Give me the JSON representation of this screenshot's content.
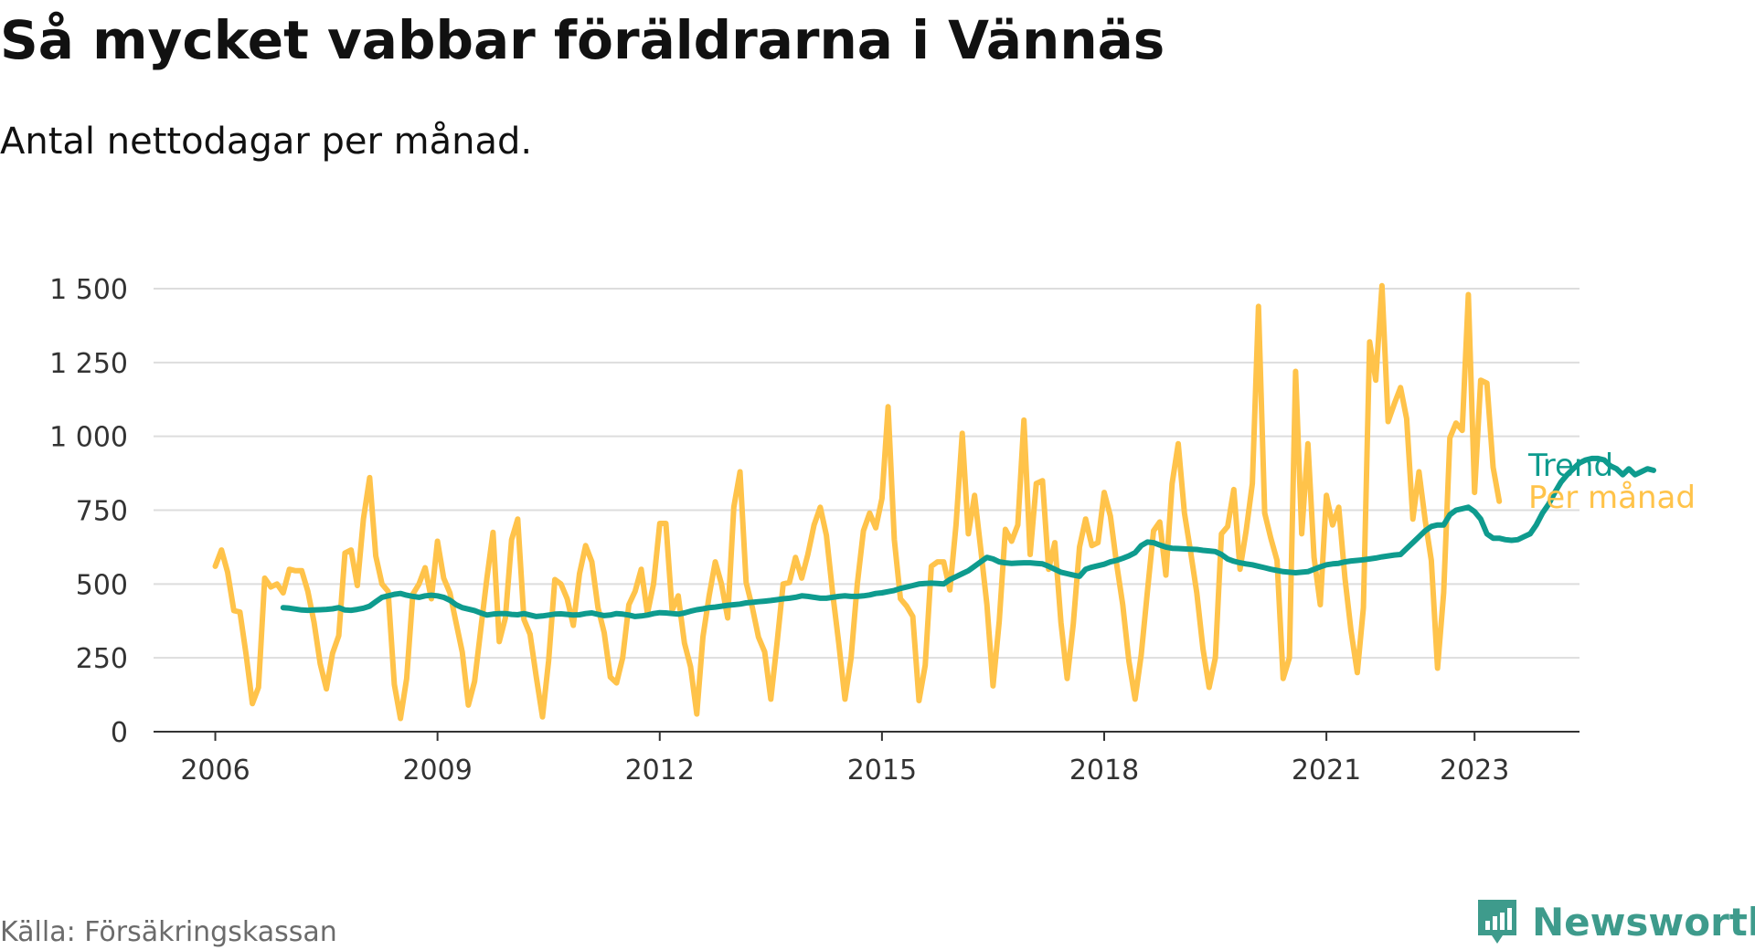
{
  "title": "Så mycket vabbar föräldrarna i Vännäs",
  "subtitle": "Antal nettodagar per månad.",
  "source": "Källa: Försäkringskassan",
  "brand": {
    "name": "Newsworthy",
    "icon": "newsworthy-logo-icon"
  },
  "colors": {
    "monthly": "#ffc34a",
    "trend": "#0e9b8e",
    "grid": "#dddddd",
    "axis": "#333333"
  },
  "chart_data": {
    "type": "line",
    "title": "Så mycket vabbar föräldrarna i Vännäs",
    "ylabel": "",
    "xlabel": "",
    "ylim": [
      0,
      1500
    ],
    "xlim": [
      "2005-03",
      "2024-06"
    ],
    "yticks": [
      0,
      250,
      500,
      750,
      1000,
      1250,
      1500
    ],
    "ytick_labels": [
      "0",
      "250",
      "500",
      "750",
      "1 000",
      "1 250",
      "1 500"
    ],
    "xticks": [
      "2006-01",
      "2009-01",
      "2012-01",
      "2015-01",
      "2018-01",
      "2021-01",
      "2023-01"
    ],
    "xtick_labels": [
      "2006",
      "2009",
      "2012",
      "2015",
      "2018",
      "2021",
      "2023"
    ],
    "grid": "horizontal",
    "legend": "line-end labels",
    "series": [
      {
        "name": "Per månad",
        "start": "2006-01",
        "values": [
          560,
          615,
          540,
          410,
          405,
          260,
          95,
          150,
          520,
          490,
          500,
          470,
          550,
          545,
          545,
          475,
          370,
          230,
          145,
          265,
          325,
          605,
          615,
          495,
          720,
          860,
          595,
          500,
          475,
          160,
          45,
          180,
          465,
          500,
          555,
          450,
          645,
          520,
          470,
          370,
          270,
          90,
          170,
          345,
          520,
          675,
          305,
          385,
          650,
          720,
          380,
          330,
          185,
          50,
          240,
          515,
          500,
          450,
          360,
          535,
          630,
          575,
          420,
          335,
          185,
          165,
          250,
          430,
          475,
          550,
          400,
          500,
          705,
          705,
          410,
          460,
          300,
          220,
          60,
          320,
          460,
          575,
          500,
          385,
          760,
          880,
          505,
          420,
          320,
          270,
          110,
          300,
          500,
          505,
          590,
          520,
          600,
          700,
          760,
          665,
          470,
          300,
          110,
          250,
          500,
          680,
          740,
          690,
          790,
          1100,
          650,
          450,
          425,
          390,
          105,
          225,
          560,
          575,
          575,
          480,
          700,
          1010,
          670,
          800,
          620,
          430,
          155,
          375,
          685,
          645,
          700,
          1055,
          600,
          840,
          850,
          550,
          640,
          370,
          180,
          365,
          625,
          720,
          630,
          640,
          810,
          730,
          570,
          430,
          240,
          110,
          260,
          475,
          680,
          710,
          530,
          840,
          975,
          740,
          610,
          470,
          280,
          150,
          250,
          670,
          695,
          820,
          550,
          680,
          840,
          1440,
          740,
          655,
          580,
          180,
          250,
          1220,
          670,
          975,
          590,
          430,
          800,
          700,
          760,
          520,
          340,
          200,
          420,
          1320,
          1190,
          1510,
          1050,
          1110,
          1165,
          1060,
          720,
          880,
          715,
          580,
          215,
          470,
          995,
          1045,
          1020,
          1480,
          810,
          1190,
          1180,
          895,
          780
        ]
      },
      {
        "name": "Trend",
        "start": "2006-12",
        "values": [
          420,
          418,
          415,
          412,
          411,
          412,
          413,
          414,
          416,
          420,
          412,
          411,
          414,
          418,
          425,
          440,
          455,
          460,
          465,
          468,
          462,
          458,
          455,
          460,
          462,
          460,
          455,
          445,
          430,
          420,
          415,
          410,
          402,
          395,
          398,
          400,
          400,
          397,
          396,
          400,
          395,
          390,
          392,
          395,
          398,
          399,
          397,
          395,
          396,
          400,
          402,
          397,
          393,
          395,
          400,
          398,
          395,
          390,
          392,
          395,
          400,
          403,
          402,
          400,
          398,
          402,
          408,
          413,
          416,
          420,
          422,
          425,
          428,
          430,
          432,
          436,
          438,
          440,
          442,
          444,
          447,
          450,
          452,
          455,
          460,
          458,
          455,
          452,
          452,
          455,
          458,
          460,
          458,
          458,
          460,
          463,
          468,
          470,
          474,
          478,
          485,
          490,
          495,
          500,
          502,
          503,
          502,
          500,
          515,
          525,
          535,
          545,
          560,
          575,
          590,
          585,
          575,
          572,
          570,
          571,
          572,
          572,
          570,
          568,
          560,
          550,
          540,
          535,
          530,
          526,
          550,
          557,
          562,
          567,
          575,
          580,
          587,
          595,
          606,
          630,
          642,
          640,
          632,
          625,
          621,
          620,
          619,
          618,
          617,
          614,
          612,
          610,
          600,
          585,
          577,
          572,
          568,
          565,
          560,
          555,
          550,
          546,
          542,
          540,
          538,
          540,
          542,
          550,
          558,
          565,
          568,
          570,
          575,
          578,
          580,
          582,
          585,
          588,
          592,
          595,
          598,
          600,
          620,
          640,
          660,
          680,
          695,
          700,
          700,
          735,
          750,
          755,
          760,
          745,
          720,
          670,
          655,
          655,
          650,
          648,
          650,
          660,
          670,
          700,
          740,
          770,
          810,
          845,
          870,
          890,
          910,
          920,
          925,
          925,
          920,
          900,
          890,
          870,
          890,
          870,
          880,
          890,
          885
        ]
      }
    ]
  }
}
